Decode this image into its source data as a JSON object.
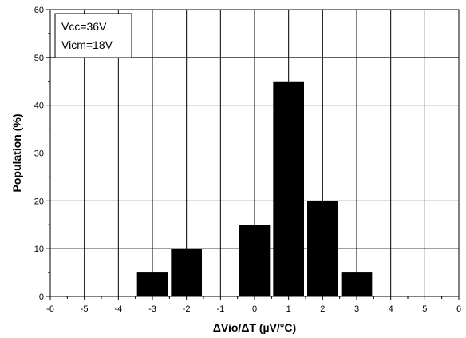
{
  "chart_data": {
    "type": "bar",
    "xlabel": "ΔVio/ΔT (µV/°C)",
    "ylabel": "Population (%)",
    "xlim": [
      -6,
      6
    ],
    "ylim": [
      0,
      60
    ],
    "x_ticks": [
      -6,
      -5,
      -4,
      -3,
      -2,
      -1,
      0,
      1,
      2,
      3,
      4,
      5,
      6
    ],
    "y_ticks": [
      0,
      10,
      20,
      30,
      40,
      50,
      60
    ],
    "grid": true,
    "bar_color": "#000000",
    "bars": [
      {
        "x_start": -3.5,
        "x_end": -2.5,
        "value": 5
      },
      {
        "x_start": -2.5,
        "x_end": -1.5,
        "value": 10
      },
      {
        "x_start": -0.5,
        "x_end": 0.5,
        "value": 15
      },
      {
        "x_start": 0.5,
        "x_end": 1.5,
        "value": 45
      },
      {
        "x_start": 1.5,
        "x_end": 2.5,
        "value": 20
      },
      {
        "x_start": 2.5,
        "x_end": 3.5,
        "value": 5
      }
    ],
    "annotation_lines": [
      "Vcc=36V",
      "Vicm=18V"
    ],
    "annotation_placement": "top-left"
  }
}
